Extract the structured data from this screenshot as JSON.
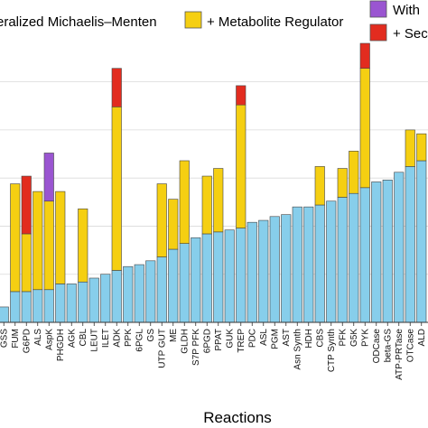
{
  "chart_data": {
    "type": "bar",
    "stacked": true,
    "xlabel": "Reactions",
    "ylabel": "",
    "grid": true,
    "legend_position": "top",
    "categories": [
      "GSS",
      "FUM",
      "G6PD",
      "ALS",
      "AspK",
      "PHGDH",
      "AGK",
      "CBL",
      "LEUT",
      "ILET",
      "ADK",
      "PPK",
      "6PGL",
      "GS",
      "UTP GUT",
      "ME",
      "GLDH",
      "S7P PFK",
      "6PGD",
      "PPAT",
      "GUK",
      "TREP",
      "PDC",
      "ASL",
      "PGM",
      "AST",
      "Asn Synth",
      "HDH",
      "CBS",
      "CTP Synth",
      "PFK",
      "G5K",
      "PYK",
      "ODCase",
      "beta-GS",
      "ATP-PRTase",
      "OTCase",
      "ALD"
    ],
    "series": [
      {
        "name": "eralized Michaelis–Menten",
        "color": "#87ceeb",
        "values": [
          0.08,
          0.16,
          0.16,
          0.17,
          0.17,
          0.2,
          0.2,
          0.21,
          0.23,
          0.25,
          0.27,
          0.29,
          0.3,
          0.32,
          0.34,
          0.38,
          0.41,
          0.44,
          0.46,
          0.47,
          0.48,
          0.49,
          0.52,
          0.53,
          0.55,
          0.56,
          0.6,
          0.6,
          0.61,
          0.63,
          0.65,
          0.67,
          0.7,
          0.73,
          0.74,
          0.78,
          0.81,
          0.84
        ]
      },
      {
        "name": "+ Metabolite Regulator",
        "color": "#f5cf12",
        "values": [
          0,
          0.56,
          0.3,
          0.51,
          0.46,
          0.48,
          0,
          0.38,
          0,
          0,
          0.85,
          0,
          0,
          0,
          0.38,
          0.26,
          0.43,
          0,
          0.3,
          0.33,
          0,
          0.64,
          0,
          0,
          0,
          0,
          0,
          0,
          0.2,
          0,
          0.15,
          0.22,
          0.62,
          0,
          0,
          0,
          0.19,
          0.14
        ]
      },
      {
        "name": "With",
        "color": "#9a55d1",
        "values": [
          0,
          0,
          0,
          0,
          0.25,
          0,
          0,
          0,
          0,
          0,
          0,
          0,
          0,
          0,
          0,
          0,
          0,
          0,
          0,
          0,
          0,
          0,
          0,
          0,
          0,
          0,
          0,
          0,
          0,
          0,
          0,
          0,
          0,
          0,
          0,
          0,
          0,
          0
        ]
      },
      {
        "name": "+ Sec",
        "color": "#e22c1f",
        "values": [
          0,
          0,
          0.3,
          0,
          0,
          0,
          0,
          0,
          0,
          0,
          0.2,
          0,
          0,
          0,
          0,
          0,
          0,
          0,
          0,
          0,
          0,
          0.1,
          0,
          0,
          0,
          0,
          0,
          0,
          0,
          0,
          0,
          0,
          0.13,
          0,
          0,
          0,
          0,
          0
        ]
      }
    ],
    "ylim": [
      0,
      1.45
    ]
  }
}
